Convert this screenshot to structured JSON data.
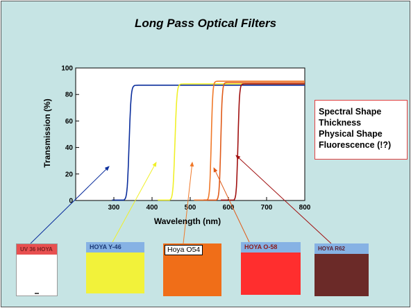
{
  "slide": {
    "title": "Long Pass Optical Filters"
  },
  "chart_data": {
    "type": "line",
    "xlabel": "Wavelength (nm)",
    "ylabel": "Transmission (%)",
    "xlim": [
      200,
      800
    ],
    "ylim": [
      0,
      100
    ],
    "xticks": [
      300,
      400,
      500,
      600,
      700,
      800
    ],
    "yticks": [
      0,
      20,
      40,
      60,
      80,
      100
    ],
    "grid": false,
    "series": [
      {
        "color": "#0a2d9c",
        "cutoff_nm": 340,
        "max": 87,
        "width": 10
      },
      {
        "color": "#f0f028",
        "cutoff_nm": 460,
        "max": 88,
        "width": 10
      },
      {
        "color": "#f07828",
        "cutoff_nm": 555,
        "max": 90,
        "width": 8
      },
      {
        "color": "#e05a18",
        "cutoff_nm": 580,
        "max": 89,
        "width": 8
      },
      {
        "color": "#a01010",
        "cutoff_nm": 625,
        "max": 88,
        "width": 8
      }
    ]
  },
  "properties": [
    "Spectral Shape",
    "Thickness",
    "Physical Shape",
    "Fluorescence (!?)"
  ],
  "filters": [
    {
      "label": "UV 36 HOYA",
      "color": "#ffffff",
      "arrow_color": "#0a2d9c"
    },
    {
      "label": "HOYA Y-46",
      "color": "#f2f23a",
      "arrow_color": "#f0f028"
    },
    {
      "label": "Hoya O54",
      "color": "#f06e18",
      "arrow_color": "#f07828"
    },
    {
      "label": "HOYA O-58",
      "color": "#ff2e2e",
      "arrow_color": "#e05a18"
    },
    {
      "label": "HOYA R62",
      "color": "#6b2a28",
      "arrow_color": "#a01010"
    }
  ]
}
